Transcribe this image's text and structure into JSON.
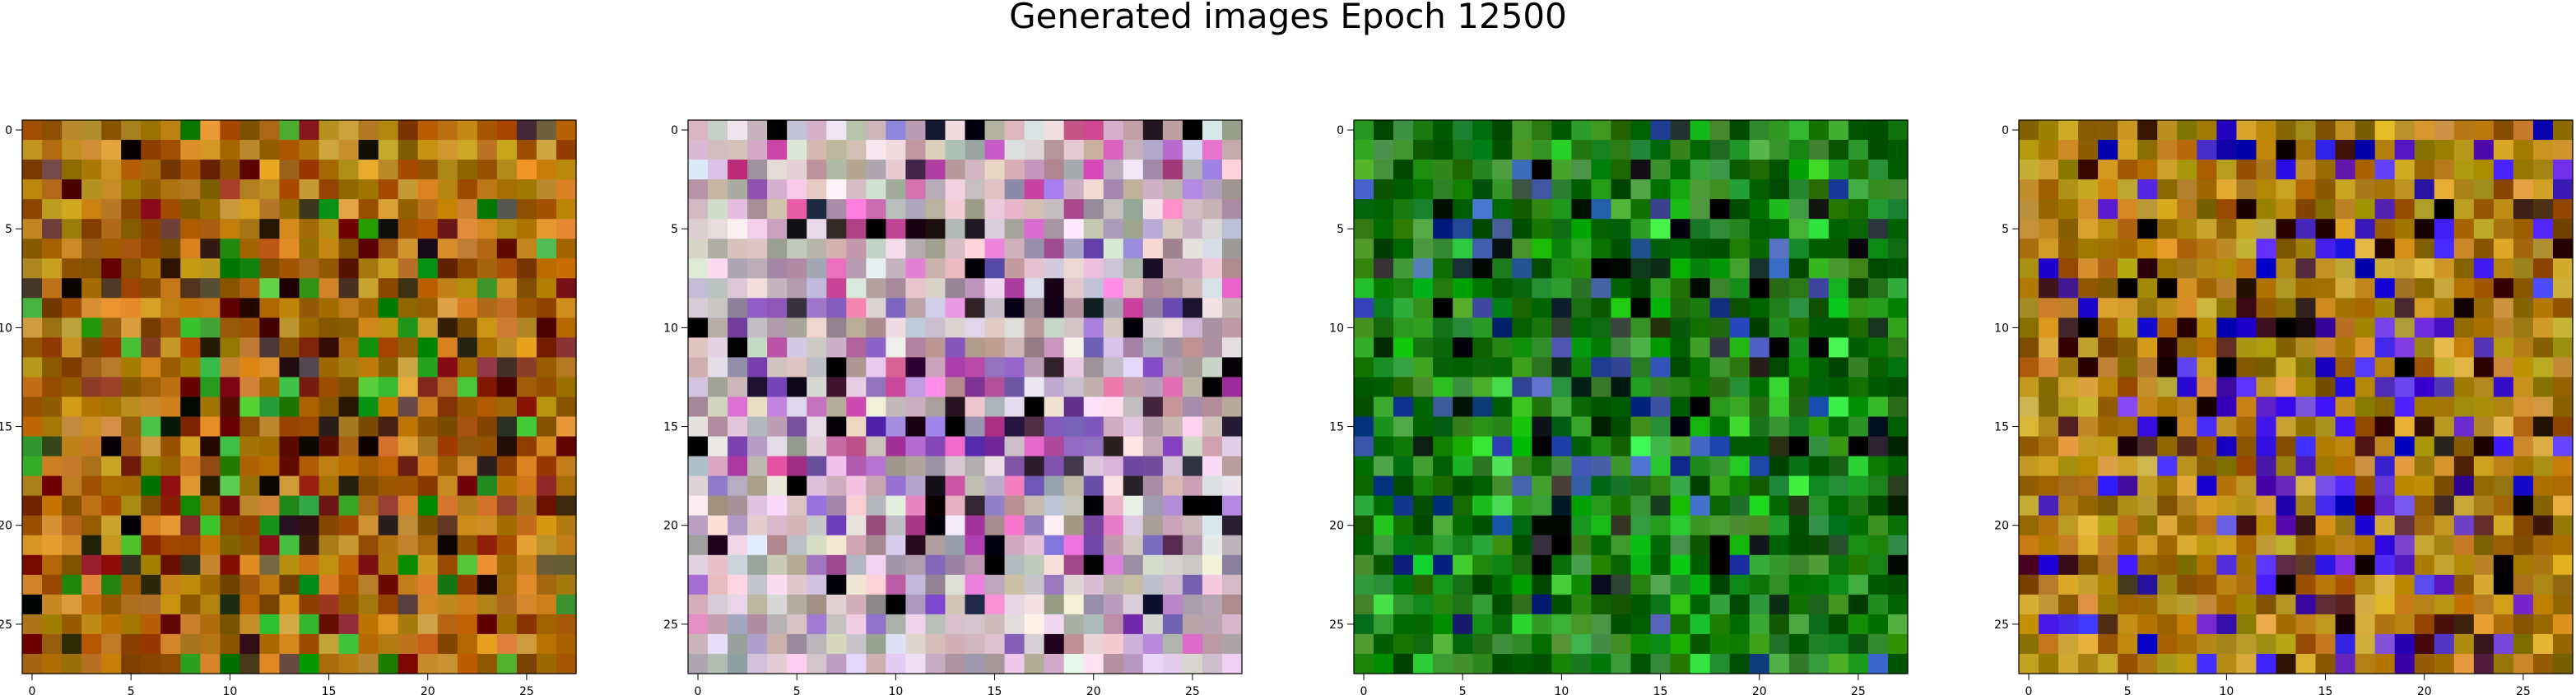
{
  "figure": {
    "title": "Generated images Epoch 12500"
  },
  "chart_data": [
    {
      "type": "heatmap",
      "grid": [
        28,
        28
      ],
      "xticks": [
        "0",
        "5",
        "10",
        "15",
        "20",
        "25"
      ],
      "yticks": [
        "0",
        "5",
        "10",
        "15",
        "20",
        "25"
      ],
      "xlim": [
        -0.5,
        27.5
      ],
      "ylim": [
        27.5,
        -0.5
      ],
      "dominant_color": "#b0700a",
      "accent_colors": [
        "#7a1a0a",
        "#3a2a1a",
        "#2aa020"
      ]
    },
    {
      "type": "heatmap",
      "grid": [
        28,
        28
      ],
      "xticks": [
        "0",
        "5",
        "10",
        "15",
        "20",
        "25"
      ],
      "yticks": [
        "0",
        "5",
        "10",
        "15",
        "20",
        "25"
      ],
      "xlim": [
        -0.5,
        27.5
      ],
      "ylim": [
        27.5,
        -0.5
      ],
      "dominant_color": "#c8b8c0",
      "accent_colors": [
        "#1a0a20",
        "#8a60c0",
        "#d060b0"
      ]
    },
    {
      "type": "heatmap",
      "grid": [
        28,
        28
      ],
      "xticks": [
        "0",
        "5",
        "10",
        "15",
        "20",
        "25"
      ],
      "yticks": [
        "0",
        "5",
        "10",
        "15",
        "20",
        "25"
      ],
      "xlim": [
        -0.5,
        27.5
      ],
      "ylim": [
        27.5,
        -0.5
      ],
      "dominant_color": "#1a7a10",
      "accent_colors": [
        "#0a1a10",
        "#2a4aa0",
        "#20c020"
      ]
    },
    {
      "type": "heatmap",
      "grid": [
        28,
        28
      ],
      "xticks": [
        "0",
        "5",
        "10",
        "15",
        "20",
        "25"
      ],
      "yticks": [
        "0",
        "5",
        "10",
        "15",
        "20",
        "25"
      ],
      "xlim": [
        -0.5,
        27.5
      ],
      "ylim": [
        27.5,
        -0.5
      ],
      "dominant_color": "#b08010",
      "accent_colors": [
        "#5020c0",
        "#3010e0",
        "#300a0a"
      ]
    }
  ]
}
